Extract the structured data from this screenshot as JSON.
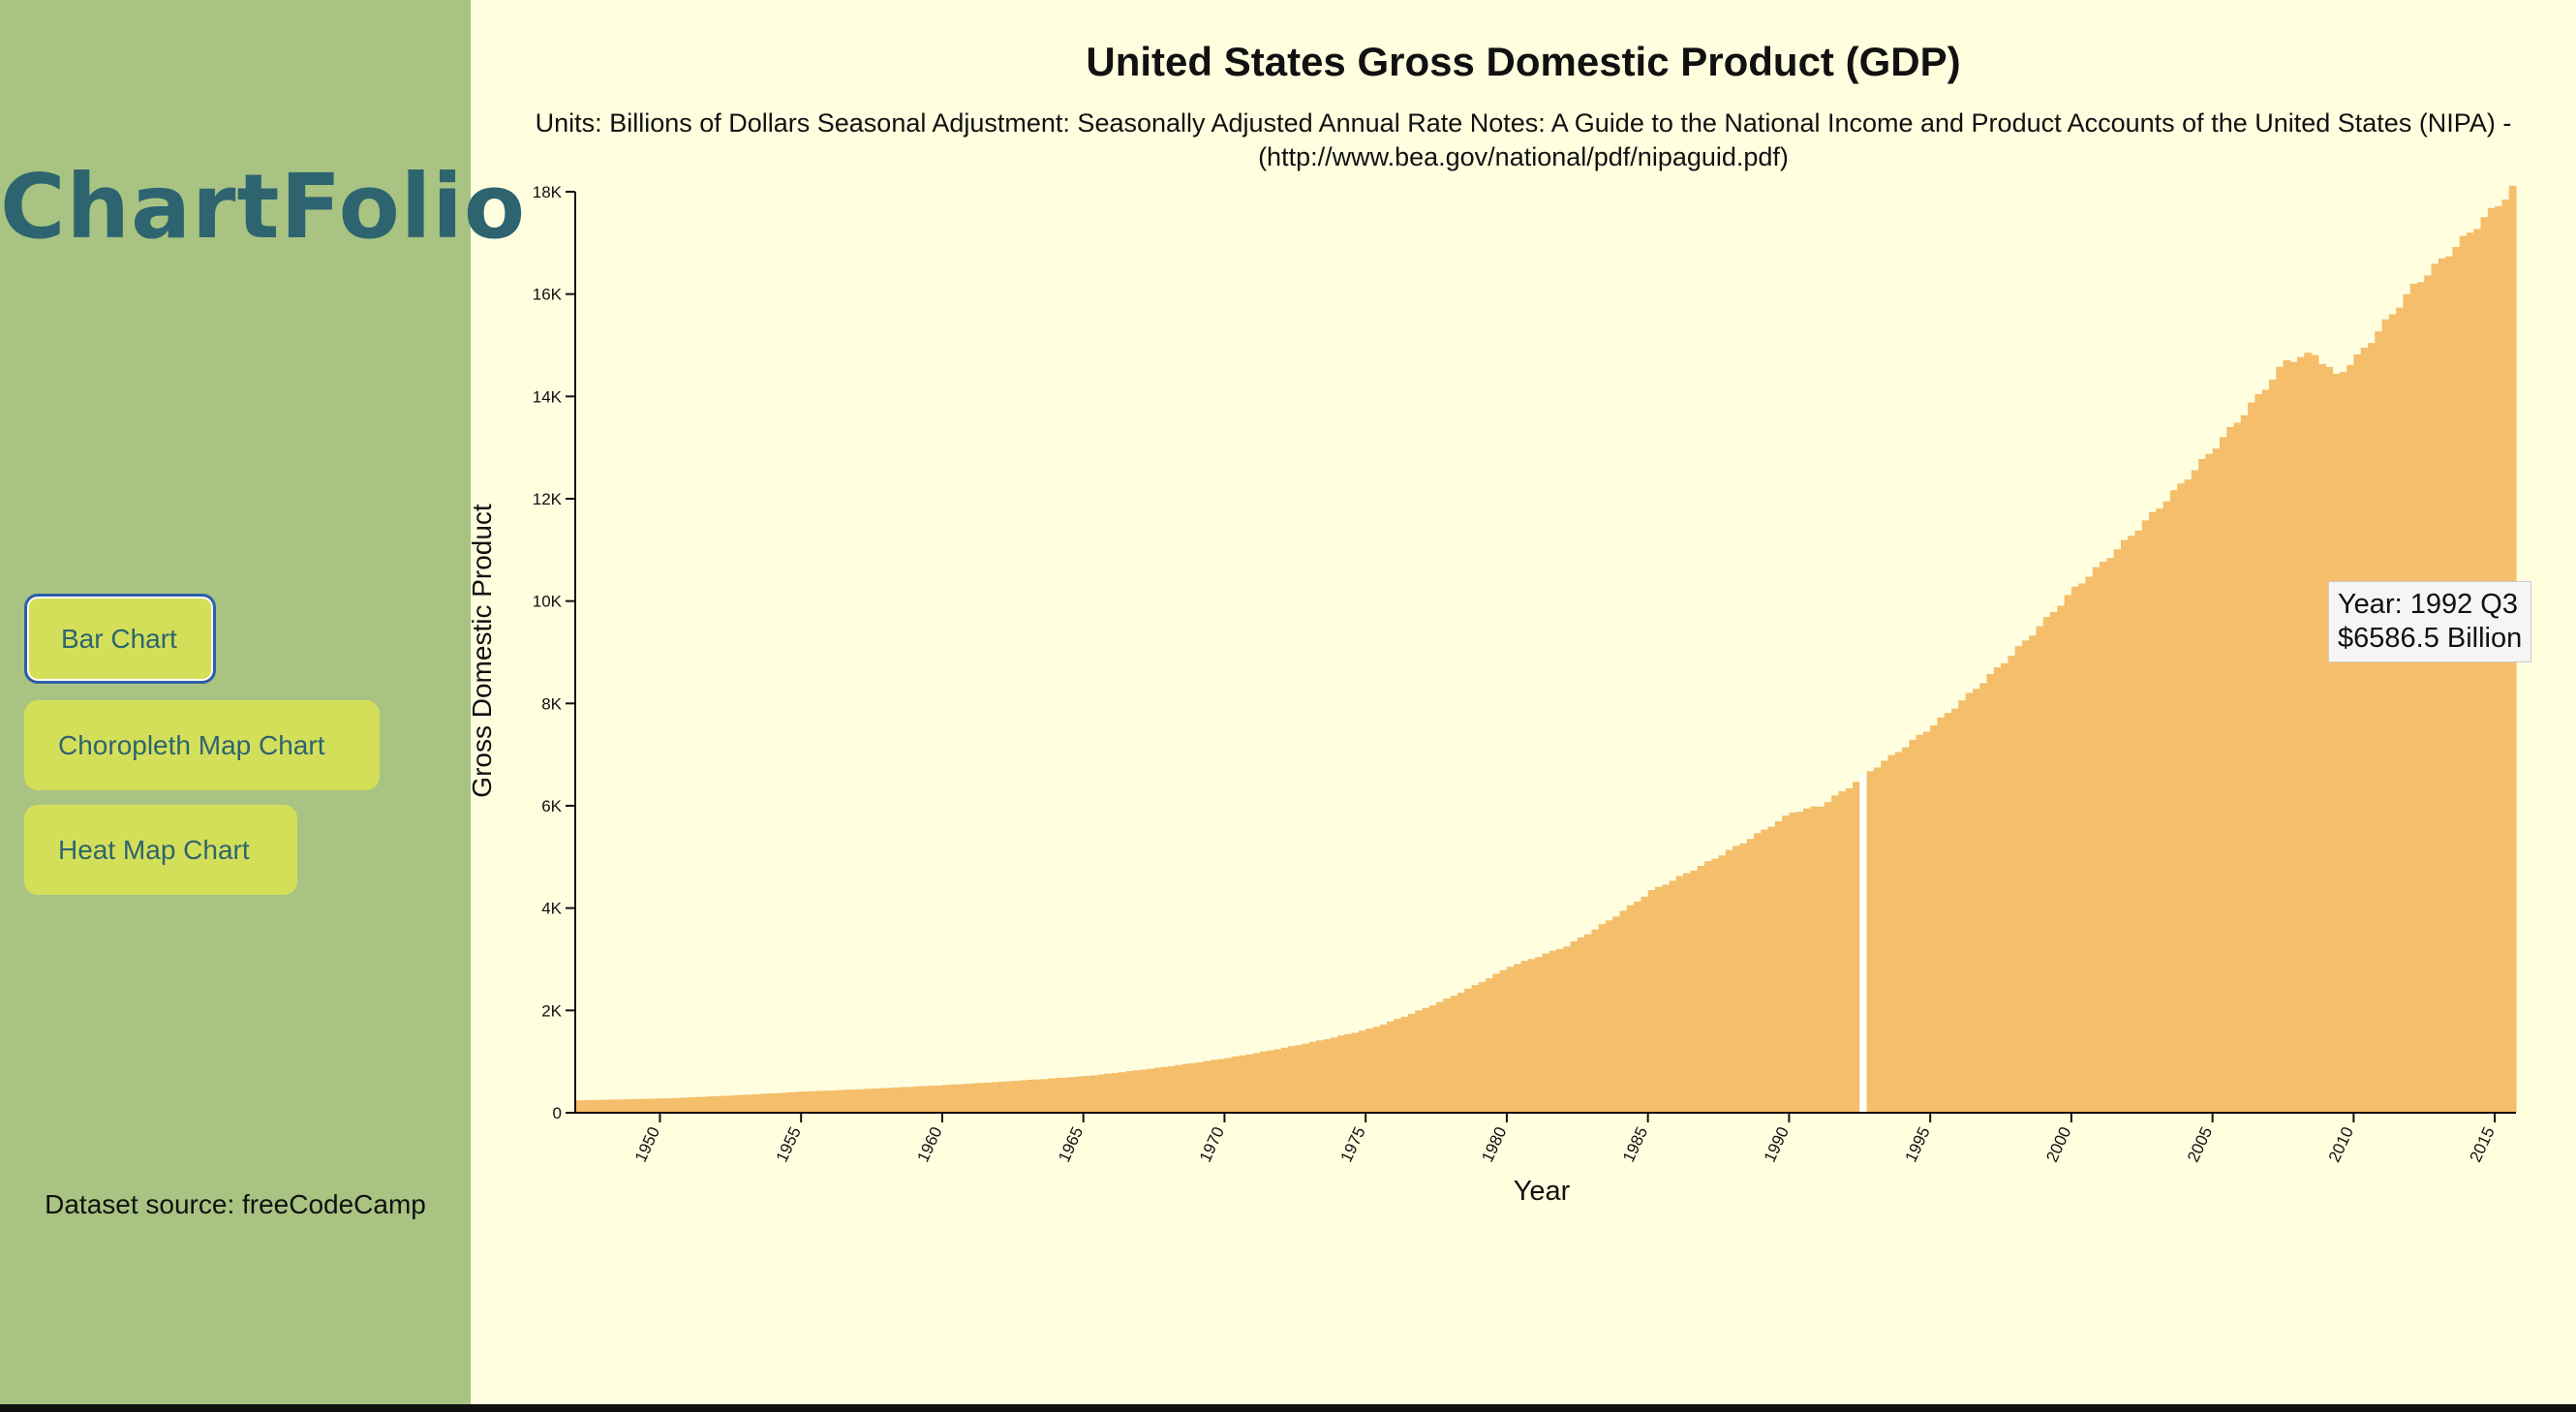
{
  "sidebar": {
    "brand": "ChartFolio",
    "nav": [
      "Bar Chart",
      "Choropleth Map Chart",
      "Heat Map Chart"
    ],
    "source": "Dataset source: freeCodeCamp"
  },
  "tooltip": {
    "line1": "Year: 1992 Q3",
    "line2": "$6586.5 Billion"
  },
  "colors": {
    "bar": "#f4be6b",
    "sidebar": "#a9c382",
    "background": "#ffffe0",
    "button": "#d4df59",
    "brand": "#2d6470"
  },
  "chart_data": {
    "type": "bar",
    "title": "United States Gross Domestic Product (GDP)",
    "subtitle": "Units: Billions of Dollars Seasonal Adjustment: Seasonally Adjusted Annual Rate Notes: A Guide to the National Income and Product Accounts of the United States (NIPA) - (http://www.bea.gov/national/pdf/nipaguid.pdf)",
    "xlabel": "Year",
    "ylabel": "Gross Domestic Product",
    "xlim": [
      1947,
      2015.75
    ],
    "ylim": [
      0,
      18000
    ],
    "x_ticks": [
      "1950",
      "1955",
      "1960",
      "1965",
      "1970",
      "1975",
      "1980",
      "1985",
      "1990",
      "1995",
      "2000",
      "2005",
      "2010",
      "2015"
    ],
    "y_ticks": [
      "0",
      "2K",
      "4K",
      "6K",
      "8K",
      "10K",
      "12K",
      "14K",
      "16K",
      "18K"
    ],
    "highlight": "1992 Q3",
    "anchors": [
      [
        1947,
        243
      ],
      [
        1950,
        280
      ],
      [
        1955,
        414
      ],
      [
        1960,
        543
      ],
      [
        1965,
        719
      ],
      [
        1970,
        1073
      ],
      [
        1975,
        1637
      ],
      [
        1980,
        2863
      ],
      [
        1982,
        3260
      ],
      [
        1985,
        4339
      ],
      [
        1990,
        5872
      ],
      [
        1991,
        6000
      ],
      [
        1992,
        6364
      ],
      [
        1992.5,
        6586.5
      ],
      [
        1995,
        7580
      ],
      [
        2000,
        10251
      ],
      [
        2005,
        13034
      ],
      [
        2007.5,
        14700
      ],
      [
        2008.5,
        14830
      ],
      [
        2009.25,
        14400
      ],
      [
        2010,
        14770
      ],
      [
        2012,
        16150
      ],
      [
        2015.25,
        17900
      ],
      [
        2015.5,
        18064
      ]
    ]
  }
}
